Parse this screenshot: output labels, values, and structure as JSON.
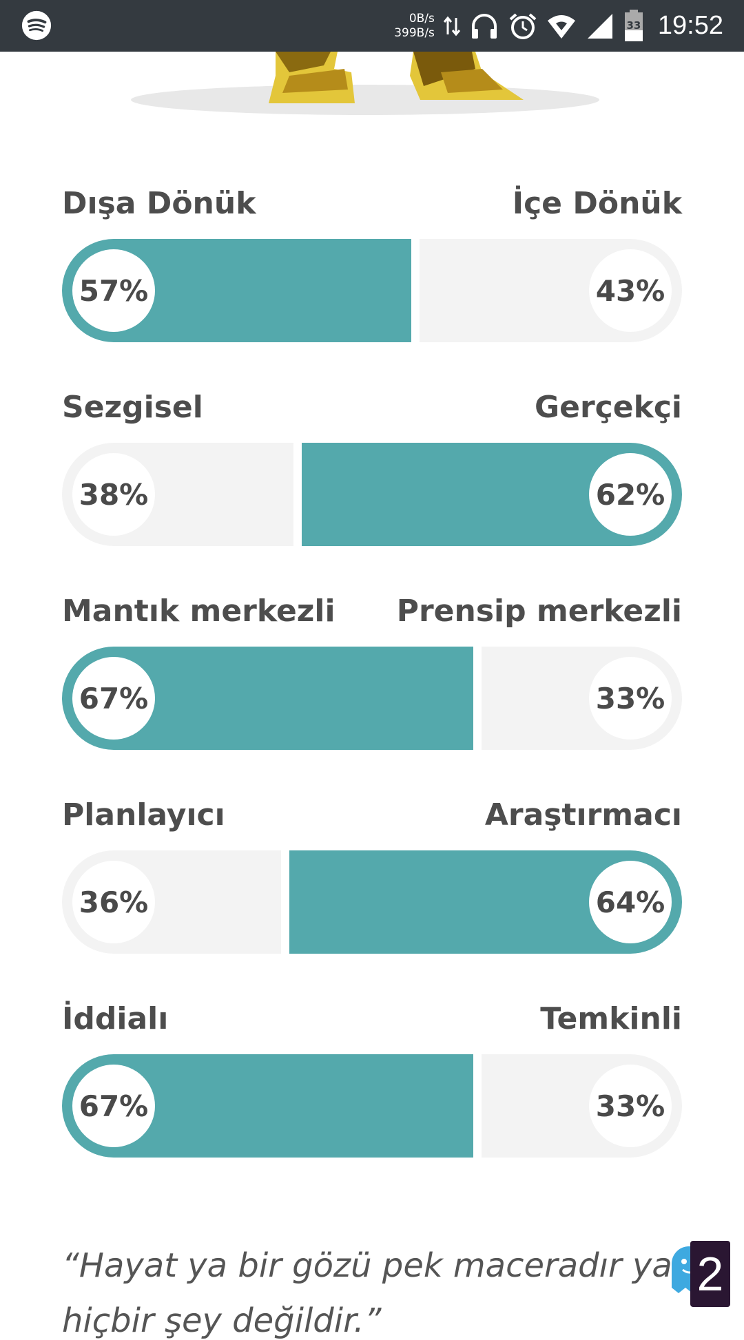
{
  "status_bar": {
    "net_up": "0B/s",
    "net_down": "399B/s",
    "battery": "33",
    "time": "19:52",
    "icons": [
      "spotify-icon",
      "data-arrows-icon",
      "headphones-icon",
      "alarm-icon",
      "wifi-icon",
      "signal-icon",
      "battery-icon"
    ]
  },
  "traits": [
    {
      "left_label": "Dışa Dönük",
      "right_label": "İçe Dönük",
      "left_pct": 57,
      "right_pct": 43,
      "left_text": "57%",
      "right_text": "43%",
      "dominant": "left"
    },
    {
      "left_label": "Sezgisel",
      "right_label": "Gerçekçi",
      "left_pct": 38,
      "right_pct": 62,
      "left_text": "38%",
      "right_text": "62%",
      "dominant": "right"
    },
    {
      "left_label": "Mantık merkezli",
      "right_label": "Prensip merkezli",
      "left_pct": 67,
      "right_pct": 33,
      "left_text": "67%",
      "right_text": "33%",
      "dominant": "left"
    },
    {
      "left_label": "Planlayıcı",
      "right_label": "Araştırmacı",
      "left_pct": 36,
      "right_pct": 64,
      "left_text": "36%",
      "right_text": "64%",
      "dominant": "right"
    },
    {
      "left_label": "İddialı",
      "right_label": "Temkinli",
      "left_pct": 67,
      "right_pct": 33,
      "left_text": "67%",
      "right_text": "33%",
      "dominant": "left"
    }
  ],
  "quote": {
    "line1_main": "“Hayat ya bir gözü pek maceradır ya d",
    "line1_fade": "a",
    "line2": "hiçbir şey değildir.”"
  },
  "overlay": {
    "tab_count": "2"
  },
  "colors": {
    "fill": "#54a9ac",
    "empty": "#f3f3f3",
    "status_bar": "#343a40"
  }
}
